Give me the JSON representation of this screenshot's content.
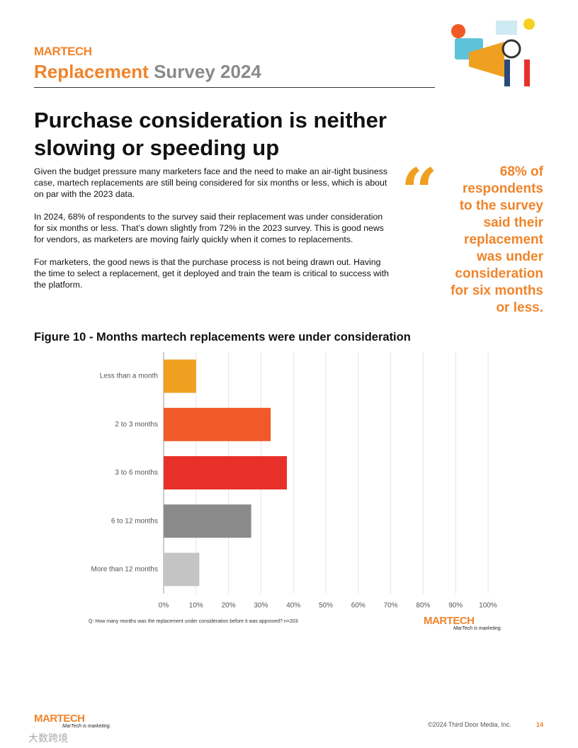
{
  "header": {
    "logo": "MARTECH",
    "title_main": "Replacement",
    "title_rest": "Survey 2024"
  },
  "heading": "Purchase consideration is neither slowing or speeding up",
  "paragraphs": [
    "Given the budget pressure many marketers face and the need to make an air-tight business case, martech replacements are still being considered for six months or less, which is about on par with the 2023 data.",
    "In 2024, 68% of respondents to the survey said their replacement was under consideration for six months or less. That’s down slightly from 72% in the 2023 survey. This is good news for vendors, as marketers are moving fairly quickly when it comes to replacements.",
    "For marketers, the good news is that the purchase process is not being drawn out. Having the time to select a replacement, get it deployed and train the team is critical to success with the platform."
  ],
  "quote": {
    "lines": [
      "68% of",
      "respondents",
      "to the survey",
      "said their",
      "replacement",
      "was under",
      "consideration",
      "for six months",
      "or less."
    ]
  },
  "chart_data": {
    "type": "bar",
    "orientation": "horizontal",
    "title": "Figure 10 - Months martech replacements were under consideration",
    "categories": [
      "Less than a month",
      "2 to 3 months",
      "3 to 6 months",
      "6 to 12 months",
      "More than 12 months"
    ],
    "values": [
      10,
      33,
      38,
      27,
      11
    ],
    "colors": [
      "#f0a020",
      "#f05a28",
      "#e8302a",
      "#8a8a8a",
      "#c4c4c4"
    ],
    "xlim": [
      0,
      100
    ],
    "xticks": [
      {
        "value": 0,
        "label": "0%"
      },
      {
        "value": 10,
        "label": "10%"
      },
      {
        "value": 20,
        "label": "20%"
      },
      {
        "value": 30,
        "label": "30%"
      },
      {
        "value": 40,
        "label": "40%"
      },
      {
        "value": 50,
        "label": "50%"
      },
      {
        "value": 60,
        "label": "60%"
      },
      {
        "value": 70,
        "label": "70%"
      },
      {
        "value": 80,
        "label": "80%"
      },
      {
        "value": 90,
        "label": "90%"
      },
      {
        "value": 100,
        "label": "100%"
      }
    ],
    "grid": true,
    "note": "Q: How many months was the replacement under consideration before it was approved? n=203"
  },
  "chart_logo": {
    "name": "MARTECH",
    "tagline": "MarTech is marketing."
  },
  "footer": {
    "logo": "MARTECH",
    "tagline": "MarTech is marketing.",
    "copyright": "©2024 Third Door Media, Inc.",
    "page": "14",
    "watermark": "大数跨境"
  }
}
